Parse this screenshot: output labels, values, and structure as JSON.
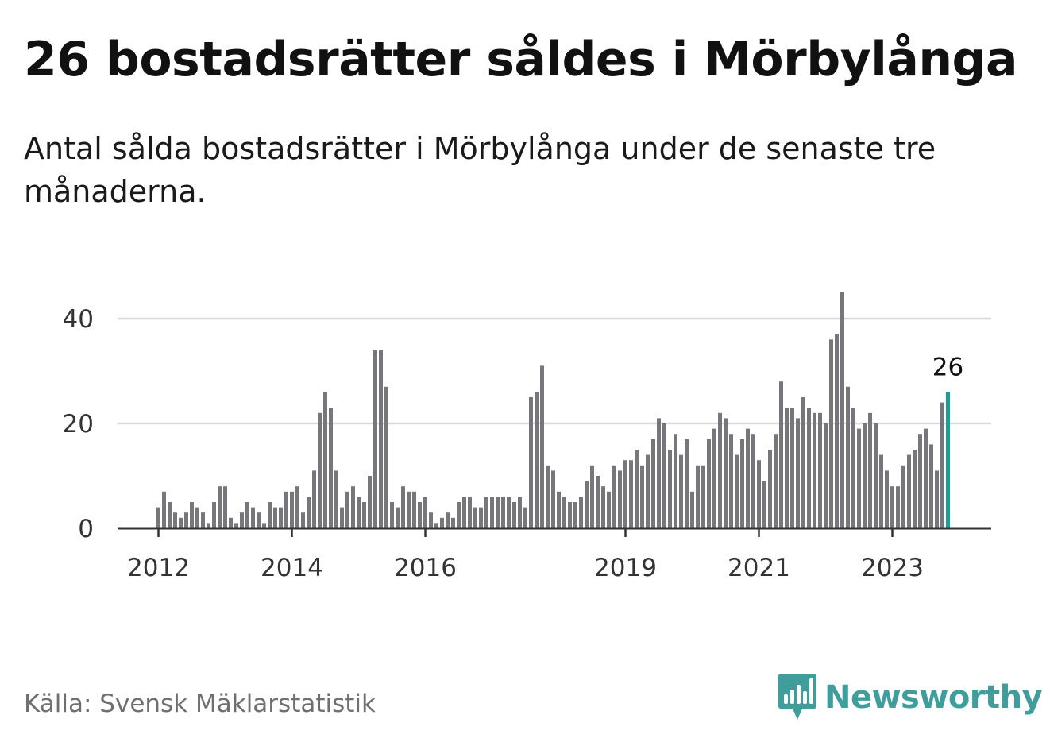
{
  "title": "26 bostadsrätter såldes i Mörbylånga",
  "subtitle": "Antal sålda bostadsrätter i Mörbylånga under de senaste tre månaderna.",
  "source": "Källa: Svensk Mäklarstatistik",
  "brand": "Newsworthy",
  "colors": {
    "bar": "#77767b",
    "highlight": "#19a098",
    "grid": "#d9d9d9",
    "axis": "#333333",
    "brand": "#3f9e9c"
  },
  "chart_data": {
    "type": "bar",
    "title": "26 bostadsrätter såldes i Mörbylånga",
    "ylabel": "",
    "xlabel": "",
    "ylim": [
      0,
      46
    ],
    "yticks": [
      {
        "value": 0,
        "label": "0"
      },
      {
        "value": 20,
        "label": "20"
      },
      {
        "value": 40,
        "label": "40"
      }
    ],
    "xticks": [
      {
        "index": 0,
        "label": "2012"
      },
      {
        "index": 24,
        "label": "2014"
      },
      {
        "index": 48,
        "label": "2016"
      },
      {
        "index": 84,
        "label": "2019"
      },
      {
        "index": 108,
        "label": "2021"
      },
      {
        "index": 132,
        "label": "2023"
      }
    ],
    "highlight_index": 142,
    "highlight_label": "26",
    "values": [
      4,
      7,
      5,
      3,
      2,
      3,
      5,
      4,
      3,
      1,
      5,
      8,
      8,
      2,
      1,
      3,
      5,
      4,
      3,
      1,
      5,
      4,
      4,
      7,
      7,
      8,
      3,
      6,
      11,
      22,
      26,
      23,
      11,
      4,
      7,
      8,
      6,
      5,
      10,
      34,
      34,
      27,
      5,
      4,
      8,
      7,
      7,
      5,
      6,
      3,
      1,
      2,
      3,
      2,
      5,
      6,
      6,
      4,
      4,
      6,
      6,
      6,
      6,
      6,
      5,
      6,
      4,
      25,
      26,
      31,
      12,
      11,
      7,
      6,
      5,
      5,
      6,
      9,
      12,
      10,
      8,
      7,
      12,
      11,
      13,
      13,
      15,
      12,
      14,
      17,
      21,
      20,
      15,
      18,
      14,
      17,
      7,
      12,
      12,
      17,
      19,
      22,
      21,
      18,
      14,
      17,
      19,
      18,
      13,
      9,
      15,
      18,
      28,
      23,
      23,
      21,
      25,
      23,
      22,
      22,
      20,
      36,
      37,
      45,
      27,
      23,
      19,
      20,
      22,
      20,
      14,
      11,
      8,
      8,
      12,
      14,
      15,
      18,
      19,
      16,
      11,
      24,
      26
    ]
  }
}
